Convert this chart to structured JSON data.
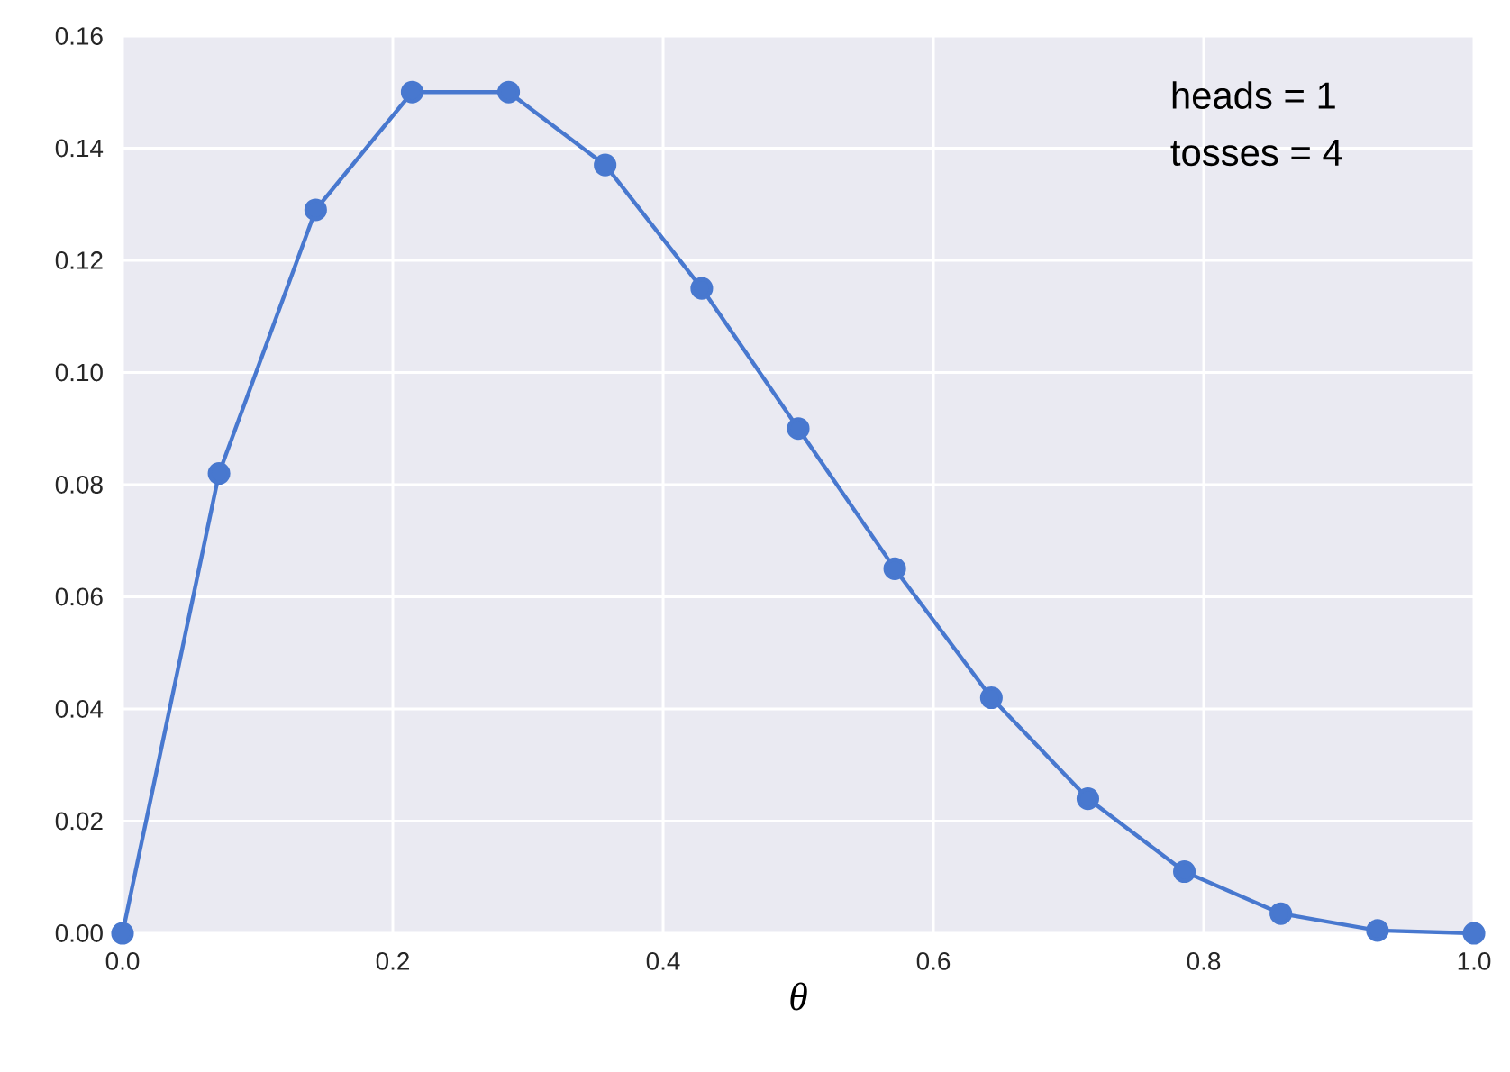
{
  "chart_data": {
    "type": "line",
    "xlabel": "θ",
    "x": [
      0,
      0.0714,
      0.1429,
      0.2143,
      0.2857,
      0.3571,
      0.4286,
      0.5,
      0.5714,
      0.6429,
      0.7143,
      0.7857,
      0.8571,
      0.9286,
      1.0
    ],
    "series": [
      {
        "color": "#4878cf",
        "values": [
          0,
          0.082,
          0.129,
          0.15,
          0.15,
          0.137,
          0.115,
          0.09,
          0.065,
          0.042,
          0.024,
          0.011,
          0.0035,
          0.0005,
          0
        ]
      }
    ],
    "xlim": [
      0,
      1
    ],
    "ylim": [
      0,
      0.16
    ],
    "xticks": [
      {
        "value": 0,
        "label": "0.0"
      },
      {
        "value": 0.2,
        "label": "0.2"
      },
      {
        "value": 0.4,
        "label": "0.4"
      },
      {
        "value": 0.6,
        "label": "0.6"
      },
      {
        "value": 0.8,
        "label": "0.8"
      },
      {
        "value": 1,
        "label": "1.0"
      }
    ],
    "yticks": [
      {
        "value": 0,
        "label": "0.00"
      },
      {
        "value": 0.02,
        "label": "0.02"
      },
      {
        "value": 0.04,
        "label": "0.04"
      },
      {
        "value": 0.06,
        "label": "0.06"
      },
      {
        "value": 0.08,
        "label": "0.08"
      },
      {
        "value": 0.1,
        "label": "0.10"
      },
      {
        "value": 0.12,
        "label": "0.12"
      },
      {
        "value": 0.14,
        "label": "0.14"
      },
      {
        "value": 0.16,
        "label": "0.16"
      }
    ],
    "grid": true,
    "marker": "circle",
    "line_style": "solid",
    "annotations": [
      "heads = 1",
      "tosses = 4"
    ]
  }
}
